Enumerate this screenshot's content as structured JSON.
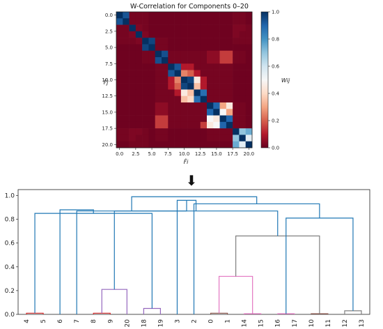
{
  "arrow": {
    "glyph": "⬇"
  },
  "chart_data": [
    {
      "type": "heatmap",
      "title": "W-Correlation for Components 0–20",
      "xlabel": "F̃i",
      "ylabel": "F̃j",
      "colorbar_label": "Wij",
      "xticks": [
        "0.0",
        "2.5",
        "5.0",
        "7.5",
        "10.0",
        "12.5",
        "15.0",
        "17.5",
        "20.0"
      ],
      "yticks": [
        "0.0",
        "2.5",
        "5.0",
        "7.5",
        "10.0",
        "12.5",
        "15.0",
        "17.5",
        "20.0"
      ],
      "colorbar_ticks": [
        "0.0",
        "0.2",
        "0.4",
        "0.6",
        "0.8",
        "1.0"
      ],
      "vmin": 0,
      "vmax": 1,
      "colormap": [
        "#67001f",
        "#b2182b",
        "#d6604d",
        "#f4a582",
        "#fddbc7",
        "#f7f7f7",
        "#d1e5f0",
        "#92c5de",
        "#4393c3",
        "#2166ac",
        "#053061"
      ],
      "matrix": [
        [
          1.0,
          0.93,
          0.02,
          0.02,
          0.02,
          0.01,
          0.01,
          0.01,
          0.01,
          0.01,
          0.01,
          0.01,
          0.01,
          0.01,
          0.01,
          0.01,
          0.01,
          0.01,
          0.02,
          0.02,
          0.01
        ],
        [
          0.93,
          1.0,
          0.02,
          0.02,
          0.02,
          0.01,
          0.01,
          0.01,
          0.01,
          0.01,
          0.01,
          0.01,
          0.01,
          0.01,
          0.01,
          0.01,
          0.01,
          0.01,
          0.02,
          0.02,
          0.01
        ],
        [
          0.02,
          0.02,
          1.0,
          0.03,
          0.02,
          0.01,
          0.01,
          0.01,
          0.01,
          0.01,
          0.01,
          0.01,
          0.01,
          0.01,
          0.01,
          0.01,
          0.01,
          0.01,
          0.03,
          0.03,
          0.02
        ],
        [
          0.02,
          0.02,
          0.03,
          1.0,
          0.03,
          0.01,
          0.01,
          0.01,
          0.01,
          0.01,
          0.01,
          0.01,
          0.01,
          0.01,
          0.01,
          0.01,
          0.01,
          0.01,
          0.03,
          0.02,
          0.02
        ],
        [
          0.02,
          0.02,
          0.02,
          0.03,
          1.0,
          0.96,
          0.02,
          0.02,
          0.01,
          0.01,
          0.01,
          0.01,
          0.01,
          0.01,
          0.01,
          0.01,
          0.01,
          0.01,
          0.02,
          0.02,
          0.02
        ],
        [
          0.01,
          0.01,
          0.01,
          0.01,
          0.96,
          1.0,
          0.02,
          0.02,
          0.01,
          0.01,
          0.01,
          0.01,
          0.01,
          0.01,
          0.01,
          0.01,
          0.01,
          0.01,
          0.01,
          0.01,
          0.01
        ],
        [
          0.01,
          0.01,
          0.01,
          0.01,
          0.02,
          0.02,
          1.0,
          0.94,
          0.02,
          0.02,
          0.02,
          0.02,
          0.02,
          0.02,
          0.05,
          0.05,
          0.15,
          0.15,
          0.02,
          0.02,
          0.01
        ],
        [
          0.01,
          0.01,
          0.01,
          0.01,
          0.02,
          0.02,
          0.94,
          1.0,
          0.02,
          0.02,
          0.02,
          0.02,
          0.02,
          0.02,
          0.05,
          0.05,
          0.15,
          0.15,
          0.02,
          0.02,
          0.01
        ],
        [
          0.01,
          0.01,
          0.01,
          0.01,
          0.01,
          0.01,
          0.02,
          0.02,
          1.0,
          0.93,
          0.1,
          0.1,
          0.02,
          0.02,
          0.02,
          0.02,
          0.02,
          0.02,
          0.01,
          0.01,
          0.01
        ],
        [
          0.01,
          0.01,
          0.01,
          0.01,
          0.01,
          0.01,
          0.02,
          0.02,
          0.93,
          1.0,
          0.25,
          0.2,
          0.1,
          0.02,
          0.02,
          0.02,
          0.02,
          0.02,
          0.01,
          0.01,
          0.01
        ],
        [
          0.01,
          0.01,
          0.01,
          0.01,
          0.01,
          0.01,
          0.02,
          0.02,
          0.1,
          0.25,
          1.0,
          0.96,
          0.45,
          0.1,
          0.02,
          0.02,
          0.02,
          0.02,
          0.01,
          0.01,
          0.01
        ],
        [
          0.01,
          0.01,
          0.01,
          0.01,
          0.01,
          0.01,
          0.02,
          0.02,
          0.1,
          0.2,
          0.96,
          1.0,
          0.35,
          0.1,
          0.02,
          0.02,
          0.02,
          0.02,
          0.01,
          0.01,
          0.01
        ],
        [
          0.01,
          0.01,
          0.01,
          0.01,
          0.01,
          0.01,
          0.02,
          0.02,
          0.02,
          0.1,
          0.45,
          0.35,
          1.0,
          0.88,
          0.02,
          0.02,
          0.02,
          0.02,
          0.01,
          0.01,
          0.01
        ],
        [
          0.01,
          0.01,
          0.01,
          0.01,
          0.01,
          0.01,
          0.02,
          0.02,
          0.02,
          0.02,
          0.35,
          0.4,
          0.88,
          1.0,
          0.02,
          0.02,
          0.02,
          0.02,
          0.01,
          0.01,
          0.01
        ],
        [
          0.01,
          0.01,
          0.01,
          0.01,
          0.01,
          0.01,
          0.05,
          0.05,
          0.02,
          0.02,
          0.02,
          0.02,
          0.02,
          0.02,
          1.0,
          0.9,
          0.3,
          0.45,
          0.02,
          0.02,
          0.01
        ],
        [
          0.01,
          0.01,
          0.01,
          0.01,
          0.01,
          0.01,
          0.05,
          0.05,
          0.02,
          0.02,
          0.02,
          0.02,
          0.02,
          0.02,
          0.9,
          1.0,
          0.5,
          0.3,
          0.02,
          0.02,
          0.01
        ],
        [
          0.01,
          0.01,
          0.01,
          0.01,
          0.01,
          0.01,
          0.15,
          0.15,
          0.02,
          0.02,
          0.02,
          0.02,
          0.02,
          0.02,
          0.5,
          0.45,
          1.0,
          0.9,
          0.02,
          0.02,
          0.01
        ],
        [
          0.01,
          0.01,
          0.01,
          0.01,
          0.01,
          0.01,
          0.15,
          0.15,
          0.02,
          0.02,
          0.02,
          0.02,
          0.02,
          0.15,
          0.45,
          0.5,
          0.9,
          1.0,
          0.02,
          0.02,
          0.01
        ],
        [
          0.02,
          0.02,
          0.03,
          0.03,
          0.02,
          0.01,
          0.02,
          0.02,
          0.01,
          0.01,
          0.01,
          0.01,
          0.01,
          0.01,
          0.02,
          0.02,
          0.02,
          0.02,
          1.0,
          0.7,
          0.75
        ],
        [
          0.02,
          0.02,
          0.03,
          0.02,
          0.02,
          0.01,
          0.02,
          0.02,
          0.01,
          0.01,
          0.01,
          0.01,
          0.01,
          0.01,
          0.02,
          0.02,
          0.02,
          0.02,
          0.7,
          1.0,
          0.55
        ],
        [
          0.01,
          0.01,
          0.02,
          0.02,
          0.02,
          0.01,
          0.01,
          0.01,
          0.01,
          0.01,
          0.01,
          0.01,
          0.01,
          0.01,
          0.01,
          0.01,
          0.01,
          0.01,
          0.75,
          0.55,
          1.0
        ]
      ]
    },
    {
      "type": "dendrogram",
      "leaves": [
        "4",
        "5",
        "6",
        "7",
        "8",
        "9",
        "20",
        "18",
        "19",
        "3",
        "2",
        "0",
        "1",
        "14",
        "15",
        "16",
        "17",
        "10",
        "11",
        "12",
        "13"
      ],
      "yticks": [
        "0.0",
        "0.2",
        "0.4",
        "0.6",
        "0.8",
        "1.0"
      ],
      "ylim": [
        0,
        1.05
      ],
      "colors": {
        "above": "#1f77b4",
        "c1": "#d62728",
        "c2": "#9467bd",
        "c3": "#8c564b",
        "c4": "#e377c2",
        "c5": "#7f7f7f"
      },
      "merges": [
        {
          "l": 0,
          "r": 1,
          "h": 0.01,
          "c": "c1"
        },
        {
          "l": 4,
          "r": 5,
          "h": 0.01,
          "c": "c1"
        },
        {
          "l": 7,
          "r": 8,
          "h": 0.05,
          "c": "c2"
        },
        {
          "l": 6,
          "r": 22,
          "h": 0.21,
          "c": "c2"
        },
        {
          "l": 11,
          "r": 12,
          "h": 0.01,
          "c": "c3"
        },
        {
          "l": 13,
          "r": 14,
          "h": 0.005,
          "c": "c4"
        },
        {
          "l": 15,
          "r": 16,
          "h": 0.005,
          "c": "c4"
        },
        {
          "l": 25,
          "r": 26,
          "h": 0.32,
          "c": "c4"
        },
        {
          "l": 17,
          "r": 18,
          "h": 0.005,
          "c": "c3"
        },
        {
          "l": 19,
          "r": 20,
          "h": 0.03,
          "c": "c5"
        },
        {
          "l": 28,
          "r": 29,
          "h": 0.66,
          "c": "c5"
        },
        {
          "l": 27,
          "r": 30,
          "h": 0.81,
          "c": "above"
        },
        {
          "l": 24,
          "r": 31,
          "h": 0.87,
          "c": "above"
        },
        {
          "l": 10,
          "r": 32,
          "h": 0.93,
          "c": "above"
        },
        {
          "l": 9,
          "r": 33,
          "h": 0.96,
          "c": "above"
        },
        {
          "l": 21,
          "r": 23,
          "h": 0.85,
          "c": "above"
        },
        {
          "l": 3,
          "r": 35,
          "h": 0.87,
          "c": "above"
        },
        {
          "l": 2,
          "r": 36,
          "h": 0.88,
          "c": "above"
        },
        {
          "l": 37,
          "r": 34,
          "h": 0.99,
          "c": "above"
        }
      ]
    }
  ]
}
